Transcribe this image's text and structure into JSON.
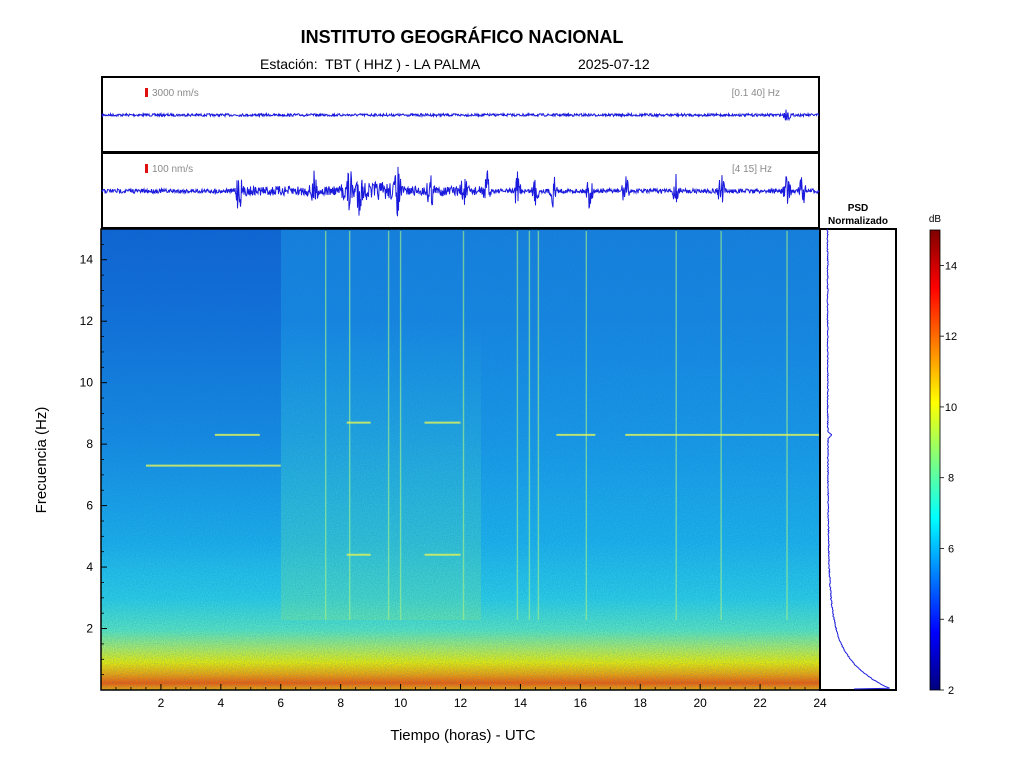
{
  "header": {
    "title": "INSTITUTO GEOGRÁFICO NACIONAL",
    "station": "Estación:  TBT ( HHZ ) - LA PALMA",
    "date": "2025-07-12"
  },
  "chart_data": [
    {
      "type": "line",
      "panel": "seismogram-broadband",
      "amplitude_scale_label": "3000 nm/s",
      "filter_label": "[0.1 40] Hz",
      "x_range_hours": [
        0,
        24
      ],
      "events_hours": [
        22.9
      ]
    },
    {
      "type": "line",
      "panel": "seismogram-filtered",
      "amplitude_scale_label": "100 nm/s",
      "filter_label": "[4 15] Hz",
      "x_range_hours": [
        0,
        24
      ],
      "events_hours": [
        4.6,
        7.1,
        8.3,
        8.6,
        9.9,
        11.0,
        12.1,
        12.9,
        13.9,
        14.5,
        15.1,
        16.3,
        17.5,
        19.2,
        20.7,
        22.9,
        23.4
      ]
    },
    {
      "type": "heatmap",
      "panel": "spectrogram",
      "xlabel": "Tiempo (horas) - UTC",
      "ylabel": "Frecuencia  (Hz)",
      "x_range": [
        0,
        24
      ],
      "y_range": [
        0,
        15
      ],
      "x_ticks": [
        2,
        4,
        6,
        8,
        10,
        12,
        14,
        16,
        18,
        20,
        22,
        24
      ],
      "y_ticks": [
        2,
        4,
        6,
        8,
        10,
        12,
        14
      ],
      "vertical_lines_hours": [
        7.5,
        8.3,
        9.6,
        10.0,
        12.1,
        13.9,
        14.3,
        14.6,
        16.2,
        19.2,
        20.7,
        22.9
      ],
      "horizontal_bands": [
        {
          "hours": [
            3.8,
            5.3
          ],
          "freq_hz": 8.3
        },
        {
          "hours": [
            8.2,
            9.0
          ],
          "freq_hz": 8.7
        },
        {
          "hours": [
            10.8,
            12.0
          ],
          "freq_hz": 8.7
        },
        {
          "hours": [
            8.2,
            9.0
          ],
          "freq_hz": 4.4
        },
        {
          "hours": [
            10.8,
            12.0
          ],
          "freq_hz": 4.4
        },
        {
          "hours": [
            15.2,
            16.5
          ],
          "freq_hz": 8.3
        },
        {
          "hours": [
            17.5,
            24.0
          ],
          "freq_hz": 8.3
        },
        {
          "hours": [
            1.5,
            6.0
          ],
          "freq_hz": 7.3
        }
      ]
    },
    {
      "type": "line",
      "panel": "psd",
      "title": "PSD\nNormalizado",
      "peak_freq_hz": 8.3
    },
    {
      "type": "heatmap",
      "panel": "colorbar",
      "label": "dB",
      "range": [
        2,
        15
      ],
      "ticks": [
        2,
        4,
        6,
        8,
        10,
        12,
        14
      ],
      "colormap": [
        "#00007f",
        "#0000ff",
        "#007fff",
        "#00ffff",
        "#7fff7f",
        "#ffff00",
        "#ff7f00",
        "#ff0000",
        "#7f0000"
      ]
    }
  ]
}
